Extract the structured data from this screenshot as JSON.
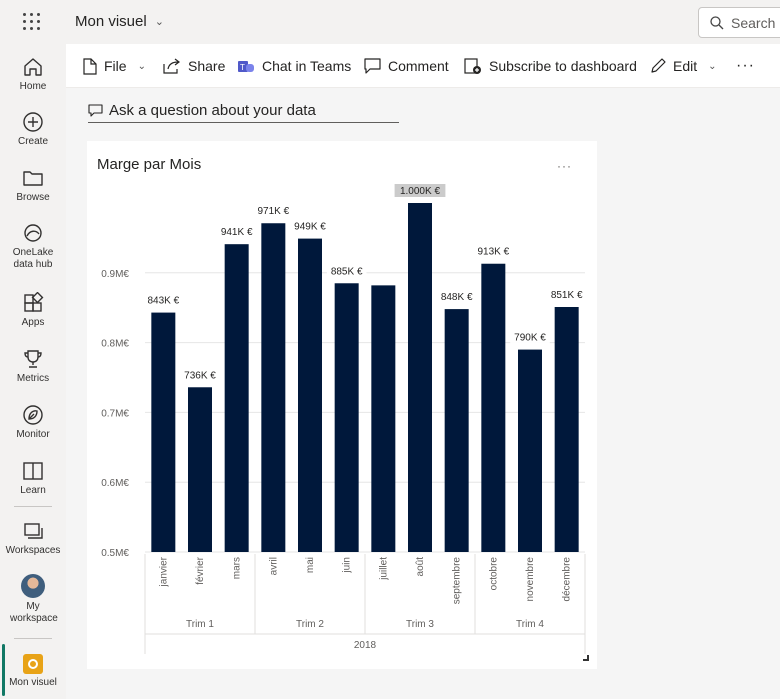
{
  "app": {
    "title": "Mon visuel",
    "search_placeholder": "Search"
  },
  "rail": {
    "items": [
      {
        "label": "Home",
        "icon": "home-icon"
      },
      {
        "label": "Create",
        "icon": "plus-circle-icon"
      },
      {
        "label": "Browse",
        "icon": "folder-icon"
      },
      {
        "label": "OneLake data hub",
        "icon": "onelake-icon"
      },
      {
        "label": "Apps",
        "icon": "apps-icon"
      },
      {
        "label": "Metrics",
        "icon": "trophy-icon"
      },
      {
        "label": "Monitor",
        "icon": "monitor-icon"
      },
      {
        "label": "Learn",
        "icon": "book-icon"
      },
      {
        "label": "Workspaces",
        "icon": "workspaces-icon"
      },
      {
        "label": "My workspace",
        "icon": "avatar-icon"
      },
      {
        "label": "Mon visuel",
        "icon": "report-icon"
      }
    ]
  },
  "toolbar": {
    "file": "File",
    "share": "Share",
    "chat": "Chat in Teams",
    "comment": "Comment",
    "subscribe": "Subscribe to dashboard",
    "edit": "Edit",
    "more": "···"
  },
  "qa": {
    "placeholder": "Ask a question about your data"
  },
  "visual": {
    "more": "···"
  },
  "colors": {
    "bar": "#00183b",
    "grid": "#e6e6e6",
    "brand": "#117865"
  },
  "chart_data": {
    "type": "bar",
    "title": "Marge par Mois",
    "categories": [
      "janvier",
      "février",
      "mars",
      "avril",
      "mai",
      "juin",
      "juillet",
      "août",
      "septembre",
      "octobre",
      "novembre",
      "décembre"
    ],
    "values": [
      843,
      736,
      941,
      971,
      949,
      885,
      882,
      1000,
      848,
      913,
      790,
      851
    ],
    "value_unit": "K €",
    "data_labels": [
      "843K €",
      "736K €",
      "941K €",
      "971K €",
      "949K €",
      "885K €",
      "",
      "1.000K €",
      "848K €",
      "913K €",
      "790K €",
      "851K €"
    ],
    "quarters": [
      "Trim 1",
      "Trim 2",
      "Trim 3",
      "Trim 4"
    ],
    "year": "2018",
    "y_ticks": [
      {
        "value": 500,
        "label": "0.5M€"
      },
      {
        "value": 600,
        "label": "0.6M€"
      },
      {
        "value": 700,
        "label": "0.7M€"
      },
      {
        "value": 800,
        "label": "0.8M€"
      },
      {
        "value": 900,
        "label": "0.9M€"
      }
    ],
    "ylim": [
      500,
      1000
    ],
    "grid": true,
    "xlabel": "",
    "ylabel": ""
  }
}
